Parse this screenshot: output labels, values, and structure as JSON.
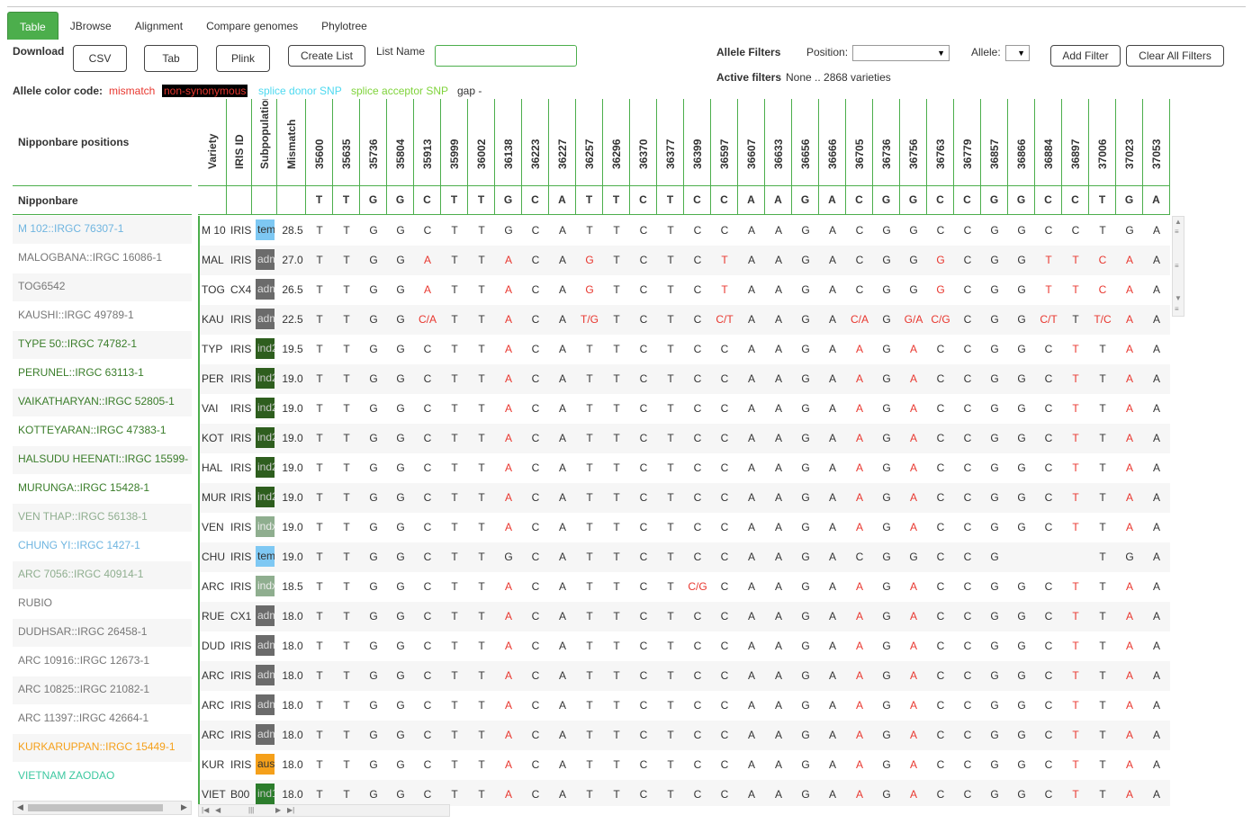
{
  "tabs": [
    "Table",
    "JBrowse",
    "Alignment",
    "Compare genomes",
    "Phylotree"
  ],
  "download": {
    "label": "Download",
    "csv": "CSV",
    "tab": "Tab",
    "plink": "Plink",
    "create_list": "Create List",
    "list_name_label": "List Name",
    "list_name_value": ""
  },
  "filters": {
    "title": "Allele Filters",
    "position_label": "Position:",
    "position_value": "",
    "allele_label": "Allele:",
    "allele_value": "",
    "add": "Add Filter",
    "clear": "Clear All Filters",
    "active_label": "Active filters",
    "active_value": "None .. 2868 varieties"
  },
  "legend": {
    "title": "Allele color code:",
    "mismatch": "mismatch",
    "nonsyn": "non-synonymous",
    "donor": "splice donor SNP",
    "acceptor": "splice acceptor SNP",
    "gap": "gap -"
  },
  "colors": {
    "accent": "#4cae4c",
    "mismatch": "#e8372f",
    "nonsyn_bg": "#000000",
    "donor": "#4dd9f0",
    "acceptor": "#7fd33a",
    "temperate": "#7ec8f3",
    "admixed": "#6b6b6b",
    "ind2": "#2e5e1e",
    "indx": "#8fae8f",
    "aus": "#f5a01a",
    "ind1": "#2c7d2c"
  },
  "left": {
    "header": "Nipponbare positions",
    "ref_label": "Nipponbare"
  },
  "columns": {
    "variety": "Variety",
    "iris": "IRIS ID",
    "subpop": "Subpopulation",
    "mismatch": "Mismatch"
  },
  "positions": [
    "35600",
    "35635",
    "35736",
    "35804",
    "35913",
    "35999",
    "36002",
    "36138",
    "36223",
    "36227",
    "36257",
    "36296",
    "36370",
    "36377",
    "36399",
    "36597",
    "36607",
    "36633",
    "36656",
    "36666",
    "36705",
    "36736",
    "36756",
    "36763",
    "36779",
    "36857",
    "36866",
    "36884",
    "36897",
    "37006",
    "37023",
    "37053"
  ],
  "reference": [
    "T",
    "T",
    "G",
    "G",
    "C",
    "T",
    "T",
    "G",
    "C",
    "A",
    "T",
    "T",
    "C",
    "T",
    "C",
    "C",
    "A",
    "A",
    "G",
    "A",
    "C",
    "G",
    "G",
    "C",
    "C",
    "G",
    "G",
    "C",
    "C",
    "T",
    "G",
    "A"
  ],
  "rows": [
    {
      "name": "M 102::IRGC 76307-1",
      "name_color": "#6fb5e0",
      "variety": "M 10",
      "iris": "IRIS",
      "subpop": "temp",
      "subpop_color": "#7ec8f3",
      "subpop_text": "#333333",
      "mismatch": "28.5",
      "alleles": [
        "T",
        "T",
        "G",
        "G",
        "C",
        "T",
        "T",
        "G",
        "C",
        "A",
        "T",
        "T",
        "C",
        "T",
        "C",
        "C",
        "A",
        "A",
        "G",
        "A",
        "C",
        "G",
        "G",
        "C",
        "C",
        "G",
        "G",
        "C",
        "C",
        "T",
        "G",
        "A"
      ],
      "mm": []
    },
    {
      "name": "MALOGBANA::IRGC 16086-1",
      "name_color": "#777777",
      "variety": "MAL",
      "iris": "IRIS",
      "subpop": "adm",
      "subpop_color": "#6b6b6b",
      "subpop_text": "#dddddd",
      "mismatch": "27.0",
      "alleles": [
        "T",
        "T",
        "G",
        "G",
        "A",
        "T",
        "T",
        "A",
        "C",
        "A",
        "G",
        "T",
        "C",
        "T",
        "C",
        "T",
        "A",
        "A",
        "G",
        "A",
        "C",
        "G",
        "G",
        "G",
        "C",
        "G",
        "G",
        "T",
        "T",
        "C",
        "A",
        "A"
      ],
      "mm": [
        4,
        7,
        10,
        15,
        23,
        27,
        28,
        29,
        30
      ]
    },
    {
      "name": "TOG6542",
      "name_color": "#777777",
      "variety": "TOG",
      "iris": "CX4",
      "subpop": "adm",
      "subpop_color": "#6b6b6b",
      "subpop_text": "#dddddd",
      "mismatch": "26.5",
      "alleles": [
        "T",
        "T",
        "G",
        "G",
        "A",
        "T",
        "T",
        "A",
        "C",
        "A",
        "G",
        "T",
        "C",
        "T",
        "C",
        "T",
        "A",
        "A",
        "G",
        "A",
        "C",
        "G",
        "G",
        "G",
        "C",
        "G",
        "G",
        "T",
        "T",
        "C",
        "A",
        "A"
      ],
      "mm": [
        4,
        7,
        10,
        15,
        23,
        27,
        28,
        29,
        30
      ]
    },
    {
      "name": "KAUSHI::IRGC 49789-1",
      "name_color": "#777777",
      "variety": "KAU",
      "iris": "IRIS",
      "subpop": "adm",
      "subpop_color": "#6b6b6b",
      "subpop_text": "#dddddd",
      "mismatch": "22.5",
      "alleles": [
        "T",
        "T",
        "G",
        "G",
        "C/A",
        "T",
        "T",
        "A",
        "C",
        "A",
        "T/G",
        "T",
        "C",
        "T",
        "C",
        "C/T",
        "A",
        "A",
        "G",
        "A",
        "C/A",
        "G",
        "G/A",
        "C/G",
        "C",
        "G",
        "G",
        "C/T",
        "T",
        "T/C",
        "A",
        "A"
      ],
      "mm": [
        4,
        7,
        10,
        15,
        20,
        22,
        23,
        27,
        29,
        30
      ]
    },
    {
      "name": "TYPE 50::IRGC 74782-1",
      "name_color": "#3a7d2a",
      "variety": "TYP",
      "iris": "IRIS",
      "subpop": "ind2",
      "subpop_color": "#2e5e1e",
      "subpop_text": "#cccccc",
      "mismatch": "19.5",
      "alleles": [
        "T",
        "T",
        "G",
        "G",
        "C",
        "T",
        "T",
        "A",
        "C",
        "A",
        "T",
        "T",
        "C",
        "T",
        "C",
        "C",
        "A",
        "A",
        "G",
        "A",
        "A",
        "G",
        "A",
        "C",
        "C",
        "G",
        "G",
        "C",
        "T",
        "T",
        "A",
        "A"
      ],
      "mm": [
        7,
        20,
        22,
        28,
        30
      ]
    },
    {
      "name": "PERUNEL::IRGC 63113-1",
      "name_color": "#3a7d2a",
      "variety": "PER",
      "iris": "IRIS",
      "subpop": "ind2",
      "subpop_color": "#2e5e1e",
      "subpop_text": "#cccccc",
      "mismatch": "19.0",
      "alleles": [
        "T",
        "T",
        "G",
        "G",
        "C",
        "T",
        "T",
        "A",
        "C",
        "A",
        "T",
        "T",
        "C",
        "T",
        "C",
        "C",
        "A",
        "A",
        "G",
        "A",
        "A",
        "G",
        "A",
        "C",
        "C",
        "G",
        "G",
        "C",
        "T",
        "T",
        "A",
        "A"
      ],
      "mm": [
        7,
        20,
        22,
        28,
        30
      ]
    },
    {
      "name": "VAIKATHARYAN::IRGC 52805-1",
      "name_color": "#3a7d2a",
      "variety": "VAI",
      "iris": "IRIS",
      "subpop": "ind2",
      "subpop_color": "#2e5e1e",
      "subpop_text": "#cccccc",
      "mismatch": "19.0",
      "alleles": [
        "T",
        "T",
        "G",
        "G",
        "C",
        "T",
        "T",
        "A",
        "C",
        "A",
        "T",
        "T",
        "C",
        "T",
        "C",
        "C",
        "A",
        "A",
        "G",
        "A",
        "A",
        "G",
        "A",
        "C",
        "C",
        "G",
        "G",
        "C",
        "T",
        "T",
        "A",
        "A"
      ],
      "mm": [
        7,
        20,
        22,
        28,
        30
      ]
    },
    {
      "name": "KOTTEYARAN::IRGC 47383-1",
      "name_color": "#3a7d2a",
      "variety": "KOT",
      "iris": "IRIS",
      "subpop": "ind2",
      "subpop_color": "#2e5e1e",
      "subpop_text": "#cccccc",
      "mismatch": "19.0",
      "alleles": [
        "T",
        "T",
        "G",
        "G",
        "C",
        "T",
        "T",
        "A",
        "C",
        "A",
        "T",
        "T",
        "C",
        "T",
        "C",
        "C",
        "A",
        "A",
        "G",
        "A",
        "A",
        "G",
        "A",
        "C",
        "C",
        "G",
        "G",
        "C",
        "T",
        "T",
        "A",
        "A"
      ],
      "mm": [
        7,
        20,
        22,
        28,
        30
      ]
    },
    {
      "name": "HALSUDU HEENATI::IRGC 15599-",
      "name_color": "#3a7d2a",
      "variety": "HAL",
      "iris": "IRIS",
      "subpop": "ind2",
      "subpop_color": "#2e5e1e",
      "subpop_text": "#cccccc",
      "mismatch": "19.0",
      "alleles": [
        "T",
        "T",
        "G",
        "G",
        "C",
        "T",
        "T",
        "A",
        "C",
        "A",
        "T",
        "T",
        "C",
        "T",
        "C",
        "C",
        "A",
        "A",
        "G",
        "A",
        "A",
        "G",
        "A",
        "C",
        "C",
        "G",
        "G",
        "C",
        "T",
        "T",
        "A",
        "A"
      ],
      "mm": [
        7,
        20,
        22,
        28,
        30
      ]
    },
    {
      "name": "MURUNGA::IRGC 15428-1",
      "name_color": "#3a7d2a",
      "variety": "MUR",
      "iris": "IRIS",
      "subpop": "ind2",
      "subpop_color": "#2e5e1e",
      "subpop_text": "#cccccc",
      "mismatch": "19.0",
      "alleles": [
        "T",
        "T",
        "G",
        "G",
        "C",
        "T",
        "T",
        "A",
        "C",
        "A",
        "T",
        "T",
        "C",
        "T",
        "C",
        "C",
        "A",
        "A",
        "G",
        "A",
        "A",
        "G",
        "A",
        "C",
        "C",
        "G",
        "G",
        "C",
        "T",
        "T",
        "A",
        "A"
      ],
      "mm": [
        7,
        20,
        22,
        28,
        30
      ]
    },
    {
      "name": "VEN THAP::IRGC 56138-1",
      "name_color": "#8fae8f",
      "variety": "VEN",
      "iris": "IRIS",
      "subpop": "indx",
      "subpop_color": "#8fae8f",
      "subpop_text": "#eeeeee",
      "mismatch": "19.0",
      "alleles": [
        "T",
        "T",
        "G",
        "G",
        "C",
        "T",
        "T",
        "A",
        "C",
        "A",
        "T",
        "T",
        "C",
        "T",
        "C",
        "C",
        "A",
        "A",
        "G",
        "A",
        "A",
        "G",
        "A",
        "C",
        "C",
        "G",
        "G",
        "C",
        "T",
        "T",
        "A",
        "A"
      ],
      "mm": [
        7,
        20,
        22,
        28,
        30
      ]
    },
    {
      "name": "CHUNG YI::IRGC 1427-1",
      "name_color": "#6fb5e0",
      "variety": "CHU",
      "iris": "IRIS",
      "subpop": "temp",
      "subpop_color": "#7ec8f3",
      "subpop_text": "#333333",
      "mismatch": "19.0",
      "alleles": [
        "T",
        "T",
        "G",
        "G",
        "C",
        "T",
        "T",
        "G",
        "C",
        "A",
        "T",
        "T",
        "C",
        "T",
        "C",
        "C",
        "A",
        "A",
        "G",
        "A",
        "C",
        "G",
        "G",
        "C",
        "C",
        "G",
        "",
        "",
        "",
        "T",
        "G",
        "A"
      ],
      "mm": []
    },
    {
      "name": "ARC 7056::IRGC 40914-1",
      "name_color": "#8fae8f",
      "variety": "ARC",
      "iris": "IRIS",
      "subpop": "indx",
      "subpop_color": "#8fae8f",
      "subpop_text": "#eeeeee",
      "mismatch": "18.5",
      "alleles": [
        "T",
        "T",
        "G",
        "G",
        "C",
        "T",
        "T",
        "A",
        "C",
        "A",
        "T",
        "T",
        "C",
        "T",
        "C/G",
        "C",
        "A",
        "A",
        "G",
        "A",
        "A",
        "G",
        "A",
        "C",
        "C",
        "G",
        "G",
        "C",
        "T",
        "T",
        "A",
        "A"
      ],
      "mm": [
        7,
        14,
        20,
        22,
        28,
        30
      ]
    },
    {
      "name": "RUBIO",
      "name_color": "#777777",
      "variety": "RUE",
      "iris": "CX1",
      "subpop": "adm",
      "subpop_color": "#6b6b6b",
      "subpop_text": "#dddddd",
      "mismatch": "18.0",
      "alleles": [
        "T",
        "T",
        "G",
        "G",
        "C",
        "T",
        "T",
        "A",
        "C",
        "A",
        "T",
        "T",
        "C",
        "T",
        "C",
        "C",
        "A",
        "A",
        "G",
        "A",
        "A",
        "G",
        "A",
        "C",
        "C",
        "G",
        "G",
        "C",
        "T",
        "T",
        "A",
        "A"
      ],
      "mm": [
        7,
        20,
        22,
        28,
        30
      ]
    },
    {
      "name": "DUDHSAR::IRGC 26458-1",
      "name_color": "#777777",
      "variety": "DUD",
      "iris": "IRIS",
      "subpop": "adm",
      "subpop_color": "#6b6b6b",
      "subpop_text": "#dddddd",
      "mismatch": "18.0",
      "alleles": [
        "T",
        "T",
        "G",
        "G",
        "C",
        "T",
        "T",
        "A",
        "C",
        "A",
        "T",
        "T",
        "C",
        "T",
        "C",
        "C",
        "A",
        "A",
        "G",
        "A",
        "A",
        "G",
        "A",
        "C",
        "C",
        "G",
        "G",
        "C",
        "T",
        "T",
        "A",
        "A"
      ],
      "mm": [
        7,
        20,
        22,
        28,
        30
      ]
    },
    {
      "name": "ARC 10916::IRGC 12673-1",
      "name_color": "#777777",
      "variety": "ARC",
      "iris": "IRIS",
      "subpop": "adm",
      "subpop_color": "#6b6b6b",
      "subpop_text": "#dddddd",
      "mismatch": "18.0",
      "alleles": [
        "T",
        "T",
        "G",
        "G",
        "C",
        "T",
        "T",
        "A",
        "C",
        "A",
        "T",
        "T",
        "C",
        "T",
        "C",
        "C",
        "A",
        "A",
        "G",
        "A",
        "A",
        "G",
        "A",
        "C",
        "C",
        "G",
        "G",
        "C",
        "T",
        "T",
        "A",
        "A"
      ],
      "mm": [
        7,
        20,
        22,
        28,
        30
      ]
    },
    {
      "name": "ARC 10825::IRGC 21082-1",
      "name_color": "#777777",
      "variety": "ARC",
      "iris": "IRIS",
      "subpop": "adm",
      "subpop_color": "#6b6b6b",
      "subpop_text": "#dddddd",
      "mismatch": "18.0",
      "alleles": [
        "T",
        "T",
        "G",
        "G",
        "C",
        "T",
        "T",
        "A",
        "C",
        "A",
        "T",
        "T",
        "C",
        "T",
        "C",
        "C",
        "A",
        "A",
        "G",
        "A",
        "A",
        "G",
        "A",
        "C",
        "C",
        "G",
        "G",
        "C",
        "T",
        "T",
        "A",
        "A"
      ],
      "mm": [
        7,
        20,
        22,
        28,
        30
      ]
    },
    {
      "name": "ARC 11397::IRGC 42664-1",
      "name_color": "#777777",
      "variety": "ARC",
      "iris": "IRIS",
      "subpop": "adm",
      "subpop_color": "#6b6b6b",
      "subpop_text": "#dddddd",
      "mismatch": "18.0",
      "alleles": [
        "T",
        "T",
        "G",
        "G",
        "C",
        "T",
        "T",
        "A",
        "C",
        "A",
        "T",
        "T",
        "C",
        "T",
        "C",
        "C",
        "A",
        "A",
        "G",
        "A",
        "A",
        "G",
        "A",
        "C",
        "C",
        "G",
        "G",
        "C",
        "T",
        "T",
        "A",
        "A"
      ],
      "mm": [
        7,
        20,
        22,
        28,
        30
      ]
    },
    {
      "name": "KURKARUPPAN::IRGC 15449-1",
      "name_color": "#f5a01a",
      "variety": "KUR",
      "iris": "IRIS",
      "subpop": "aus",
      "subpop_color": "#f5a01a",
      "subpop_text": "#333333",
      "mismatch": "18.0",
      "alleles": [
        "T",
        "T",
        "G",
        "G",
        "C",
        "T",
        "T",
        "A",
        "C",
        "A",
        "T",
        "T",
        "C",
        "T",
        "C",
        "C",
        "A",
        "A",
        "G",
        "A",
        "A",
        "G",
        "A",
        "C",
        "C",
        "G",
        "G",
        "C",
        "T",
        "T",
        "A",
        "A"
      ],
      "mm": [
        7,
        20,
        22,
        28,
        30
      ]
    },
    {
      "name": "VIETNAM ZAODAO",
      "name_color": "#3cc8a0",
      "variety": "VIET",
      "iris": "B00",
      "subpop": "ind1",
      "subpop_color": "#2c7d2c",
      "subpop_text": "#cccccc",
      "mismatch": "18.0",
      "alleles": [
        "T",
        "T",
        "G",
        "G",
        "C",
        "T",
        "T",
        "A",
        "C",
        "A",
        "T",
        "T",
        "C",
        "T",
        "C",
        "C",
        "A",
        "A",
        "G",
        "A",
        "A",
        "G",
        "A",
        "C",
        "C",
        "G",
        "G",
        "C",
        "T",
        "T",
        "A",
        "A"
      ],
      "mm": [
        7,
        20,
        22,
        28,
        30
      ]
    }
  ]
}
